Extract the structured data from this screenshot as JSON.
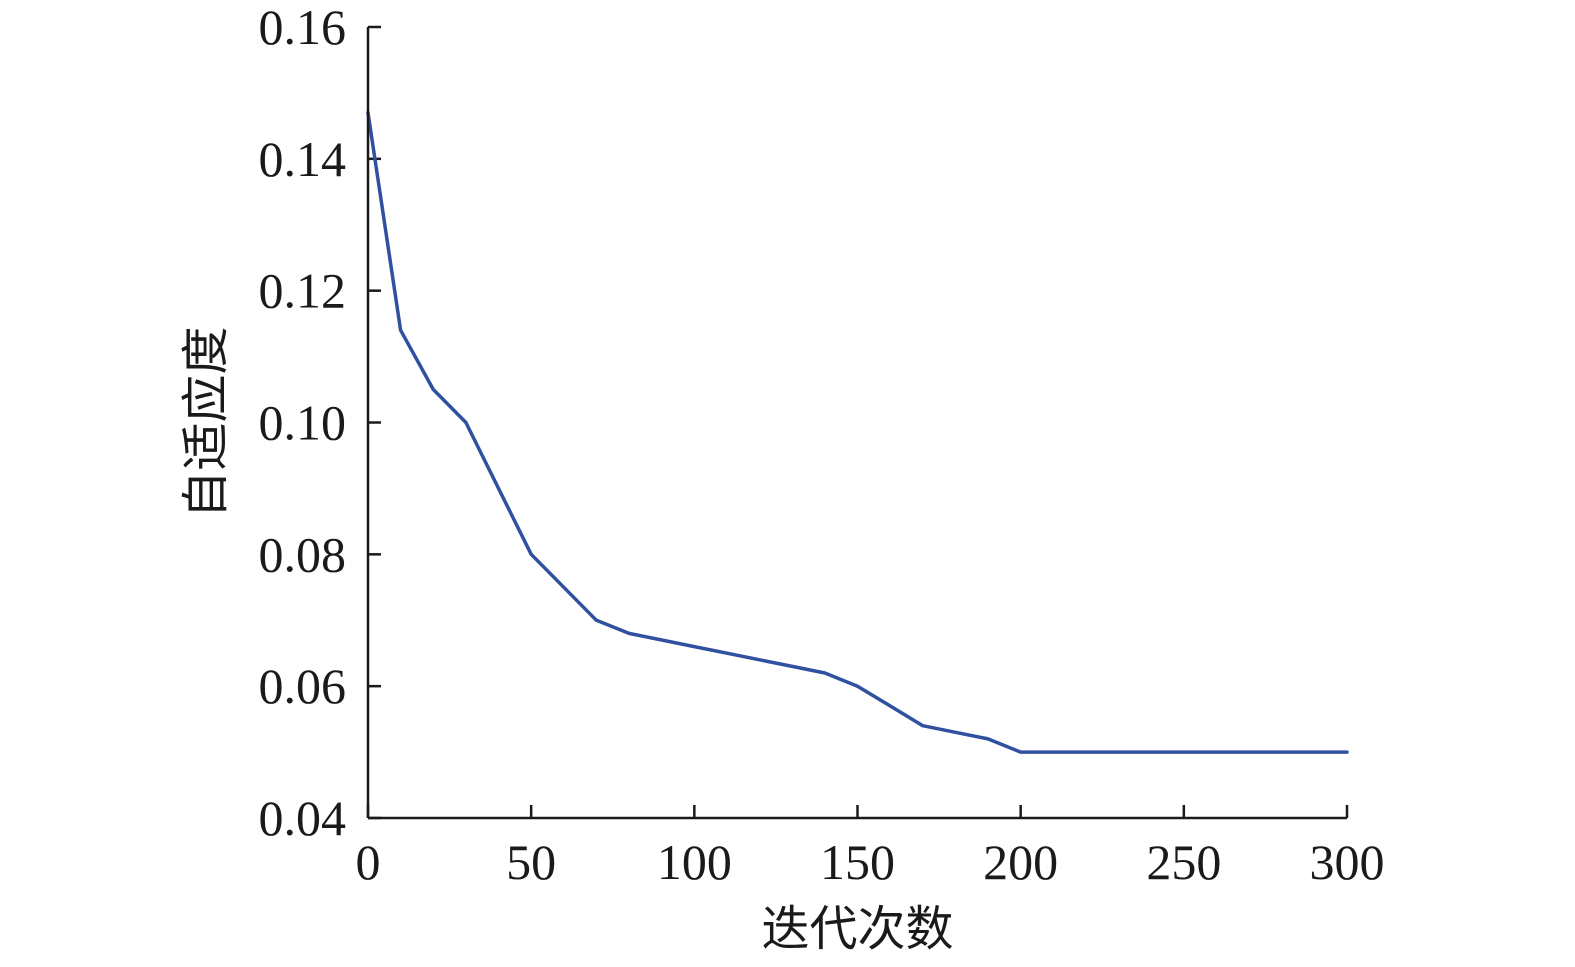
{
  "chart_data": {
    "type": "line",
    "title": "",
    "xlabel": "迭代次数",
    "ylabel": "自适应度",
    "xlim": [
      0,
      300
    ],
    "ylim": [
      0.04,
      0.16
    ],
    "xticks": [
      0,
      50,
      100,
      150,
      200,
      250,
      300
    ],
    "xtick_labels": [
      "0",
      "50",
      "100",
      "150",
      "200",
      "250",
      "300"
    ],
    "yticks": [
      0.04,
      0.06,
      0.08,
      0.1,
      0.12,
      0.14,
      0.16
    ],
    "ytick_labels": [
      "0.04",
      "0.06",
      "0.08",
      "0.10",
      "0.12",
      "0.14",
      "0.16"
    ],
    "grid": false,
    "legend": "none",
    "series": [
      {
        "color": "#3050a0",
        "x": [
          0,
          10,
          20,
          30,
          40,
          50,
          60,
          70,
          80,
          90,
          100,
          110,
          120,
          130,
          140,
          150,
          160,
          170,
          180,
          190,
          200,
          210,
          220,
          230,
          240,
          250,
          260,
          270,
          280,
          290,
          300
        ],
        "y": [
          0.147,
          0.114,
          0.105,
          0.1,
          0.09,
          0.08,
          0.075,
          0.07,
          0.068,
          0.067,
          0.066,
          0.065,
          0.064,
          0.063,
          0.062,
          0.06,
          0.057,
          0.054,
          0.053,
          0.052,
          0.05,
          0.05,
          0.05,
          0.05,
          0.05,
          0.05,
          0.05,
          0.05,
          0.05,
          0.05,
          0.05
        ]
      }
    ]
  }
}
